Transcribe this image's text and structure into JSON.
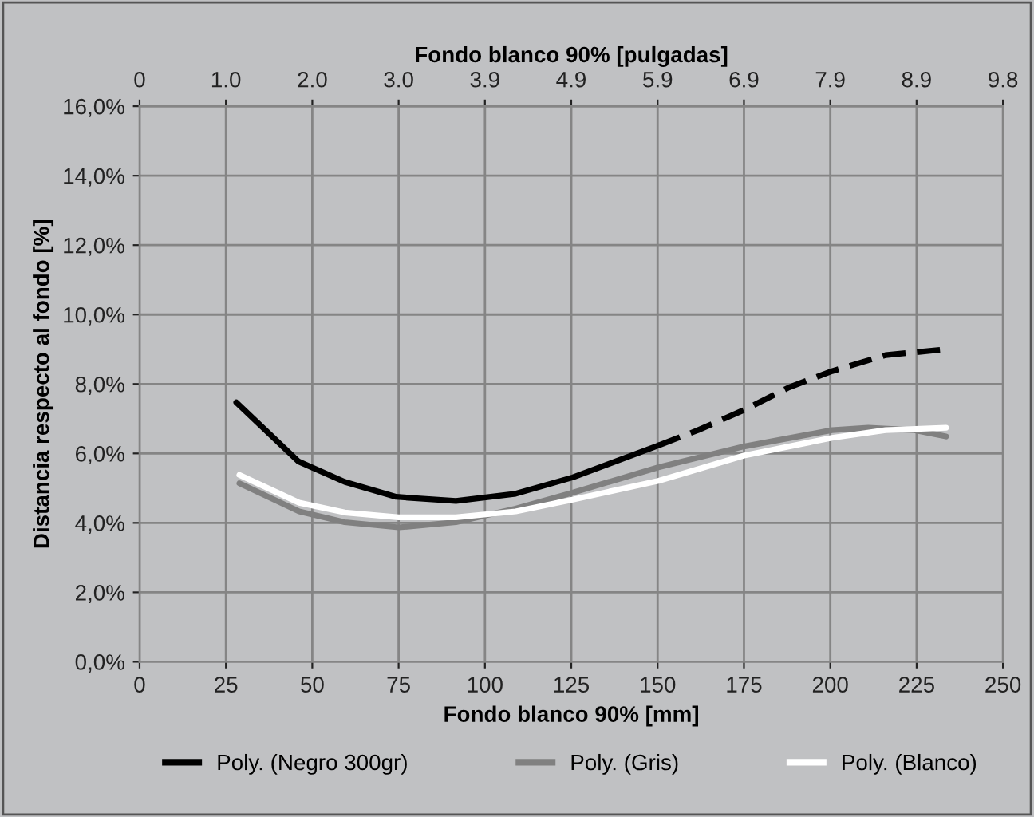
{
  "chart_data": {
    "type": "line",
    "xlabel": "Fondo blanco 90% [mm]",
    "ylabel": "Distancia respecto al fondo [%]",
    "x2label": "Fondo blanco 90% [pulgadas]",
    "xlim": [
      0,
      250
    ],
    "xticks": [
      0,
      25,
      50,
      75,
      100,
      125,
      150,
      175,
      200,
      225,
      250
    ],
    "x2lim": [
      0,
      9.843
    ],
    "x2ticks": [
      0,
      {
        "value": 0.984,
        "label": "1.0"
      },
      {
        "value": 1.969,
        "label": "2.0"
      },
      {
        "value": 2.953,
        "label": "3.0"
      },
      {
        "value": 3.937,
        "label": "3.9"
      },
      {
        "value": 4.921,
        "label": "4.9"
      },
      {
        "value": 5.906,
        "label": "5.9"
      },
      {
        "value": 6.89,
        "label": "6.9"
      },
      {
        "value": 7.874,
        "label": "7.9"
      },
      {
        "value": 8.858,
        "label": "8.9"
      },
      {
        "value": 9.843,
        "label": "9.8"
      }
    ],
    "ylim": [
      0,
      16
    ],
    "yticks": [
      {
        "value": 0,
        "label": "0,0%"
      },
      {
        "value": 2,
        "label": "2,0%"
      },
      {
        "value": 4,
        "label": "4,0%"
      },
      {
        "value": 6,
        "label": "6,0%"
      },
      {
        "value": 8,
        "label": "8,0%"
      },
      {
        "value": 10,
        "label": "10,0%"
      },
      {
        "value": 12,
        "label": "12,0%"
      },
      {
        "value": 14,
        "label": "14,0%"
      },
      {
        "value": 16,
        "label": "16,0%"
      }
    ],
    "grid": true,
    "legend": "bottom",
    "marker": "none",
    "series": [
      {
        "name": "Poly. (Negro 300gr)",
        "color": "#000000",
        "line_style": "solid",
        "x": [
          28,
          46,
          59.4,
          74.3,
          91.6,
          108.9,
          125.4,
          150.2
        ],
        "values": [
          7.47,
          5.77,
          5.18,
          4.75,
          4.63,
          4.84,
          5.31,
          6.23
        ]
      },
      {
        "color": "#000000",
        "line_style": "dashed",
        "x": [
          150.2,
          161.7,
          175,
          188,
          200.5,
          216,
          233.5
        ],
        "values": [
          6.23,
          6.67,
          7.25,
          7.9,
          8.37,
          8.83,
          9.0
        ]
      },
      {
        "name": "Poly. (Gris)",
        "color": "#808080",
        "line_style": "solid",
        "x": [
          28.9,
          46.2,
          59.4,
          75,
          91.6,
          108.9,
          125.4,
          150.2,
          175,
          200.5,
          211,
          224.4,
          233.5
        ],
        "values": [
          5.14,
          4.33,
          4.02,
          3.87,
          4.02,
          4.41,
          4.87,
          5.6,
          6.2,
          6.67,
          6.74,
          6.67,
          6.49
        ]
      },
      {
        "name": "Poly. (Blanco)",
        "color": "#ffffff",
        "line_style": "solid",
        "x": [
          28.9,
          46.2,
          59.4,
          75,
          91.6,
          108.9,
          125.4,
          150.2,
          175,
          200.5,
          216,
          233.5
        ],
        "values": [
          5.38,
          4.58,
          4.3,
          4.16,
          4.16,
          4.33,
          4.67,
          5.21,
          5.94,
          6.45,
          6.67,
          6.74
        ]
      }
    ]
  }
}
